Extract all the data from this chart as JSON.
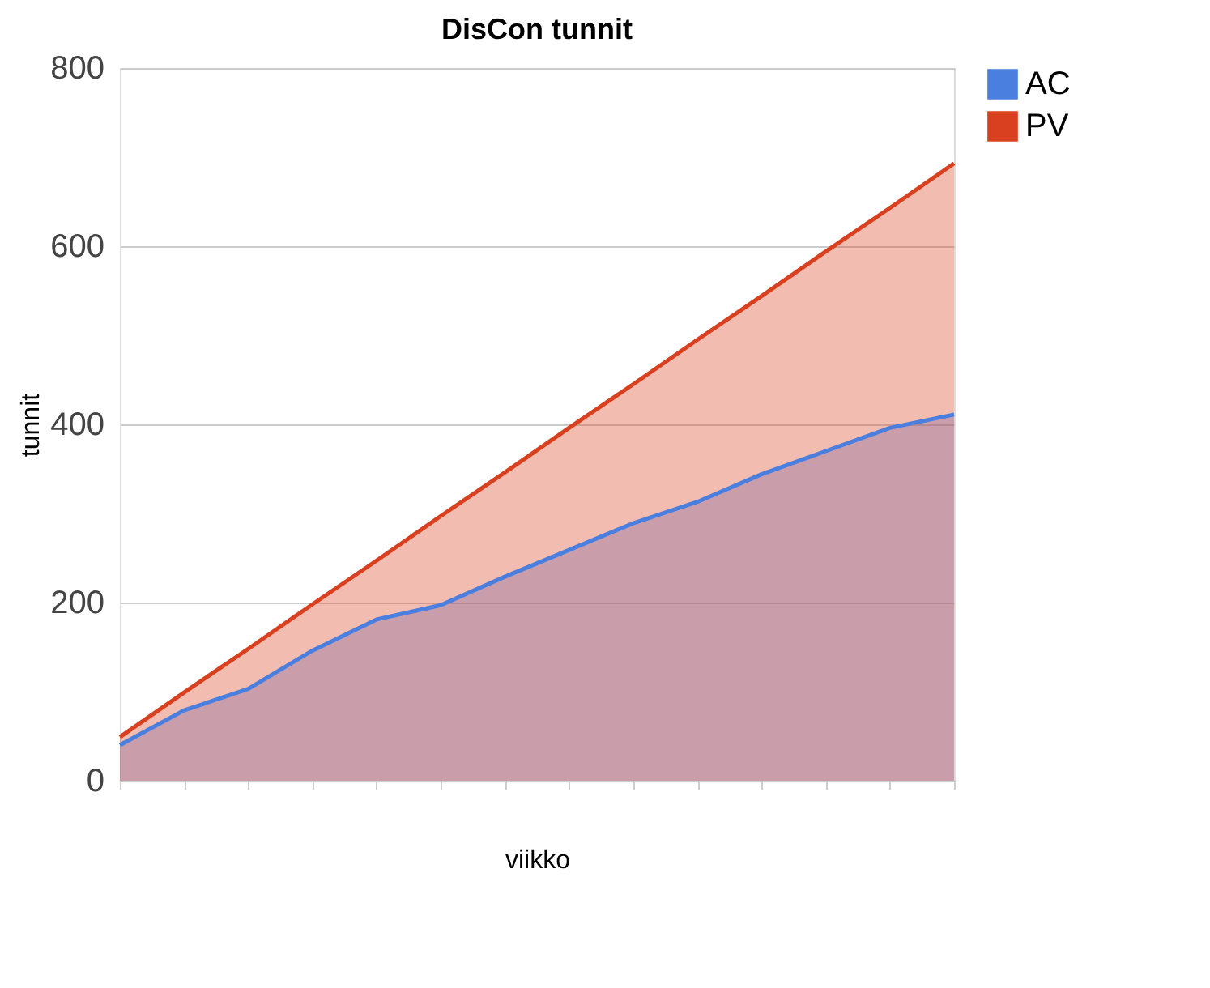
{
  "chart_data": {
    "type": "area",
    "title": "DisCon tunnit",
    "xlabel": "viikko",
    "ylabel": "tunnit",
    "categories": [
      null,
      null,
      null,
      null,
      null,
      null,
      null,
      null,
      null,
      null,
      null,
      null,
      null,
      null
    ],
    "series": [
      {
        "name": "AC",
        "color": "#4a7fe0",
        "values": [
          40,
          79,
          103,
          146,
          181,
          197,
          229,
          259,
          289,
          313,
          344,
          370,
          396,
          411
        ]
      },
      {
        "name": "PV",
        "color": "#d9401f",
        "values": [
          49,
          99,
          148,
          198,
          247,
          297,
          346,
          396,
          445,
          495,
          544,
          594,
          643,
          693
        ]
      }
    ],
    "ylim": [
      0,
      800
    ],
    "yticks": [
      0,
      200,
      400,
      600,
      800
    ],
    "grid": "y",
    "legend": "right",
    "tick_labels": "y"
  }
}
